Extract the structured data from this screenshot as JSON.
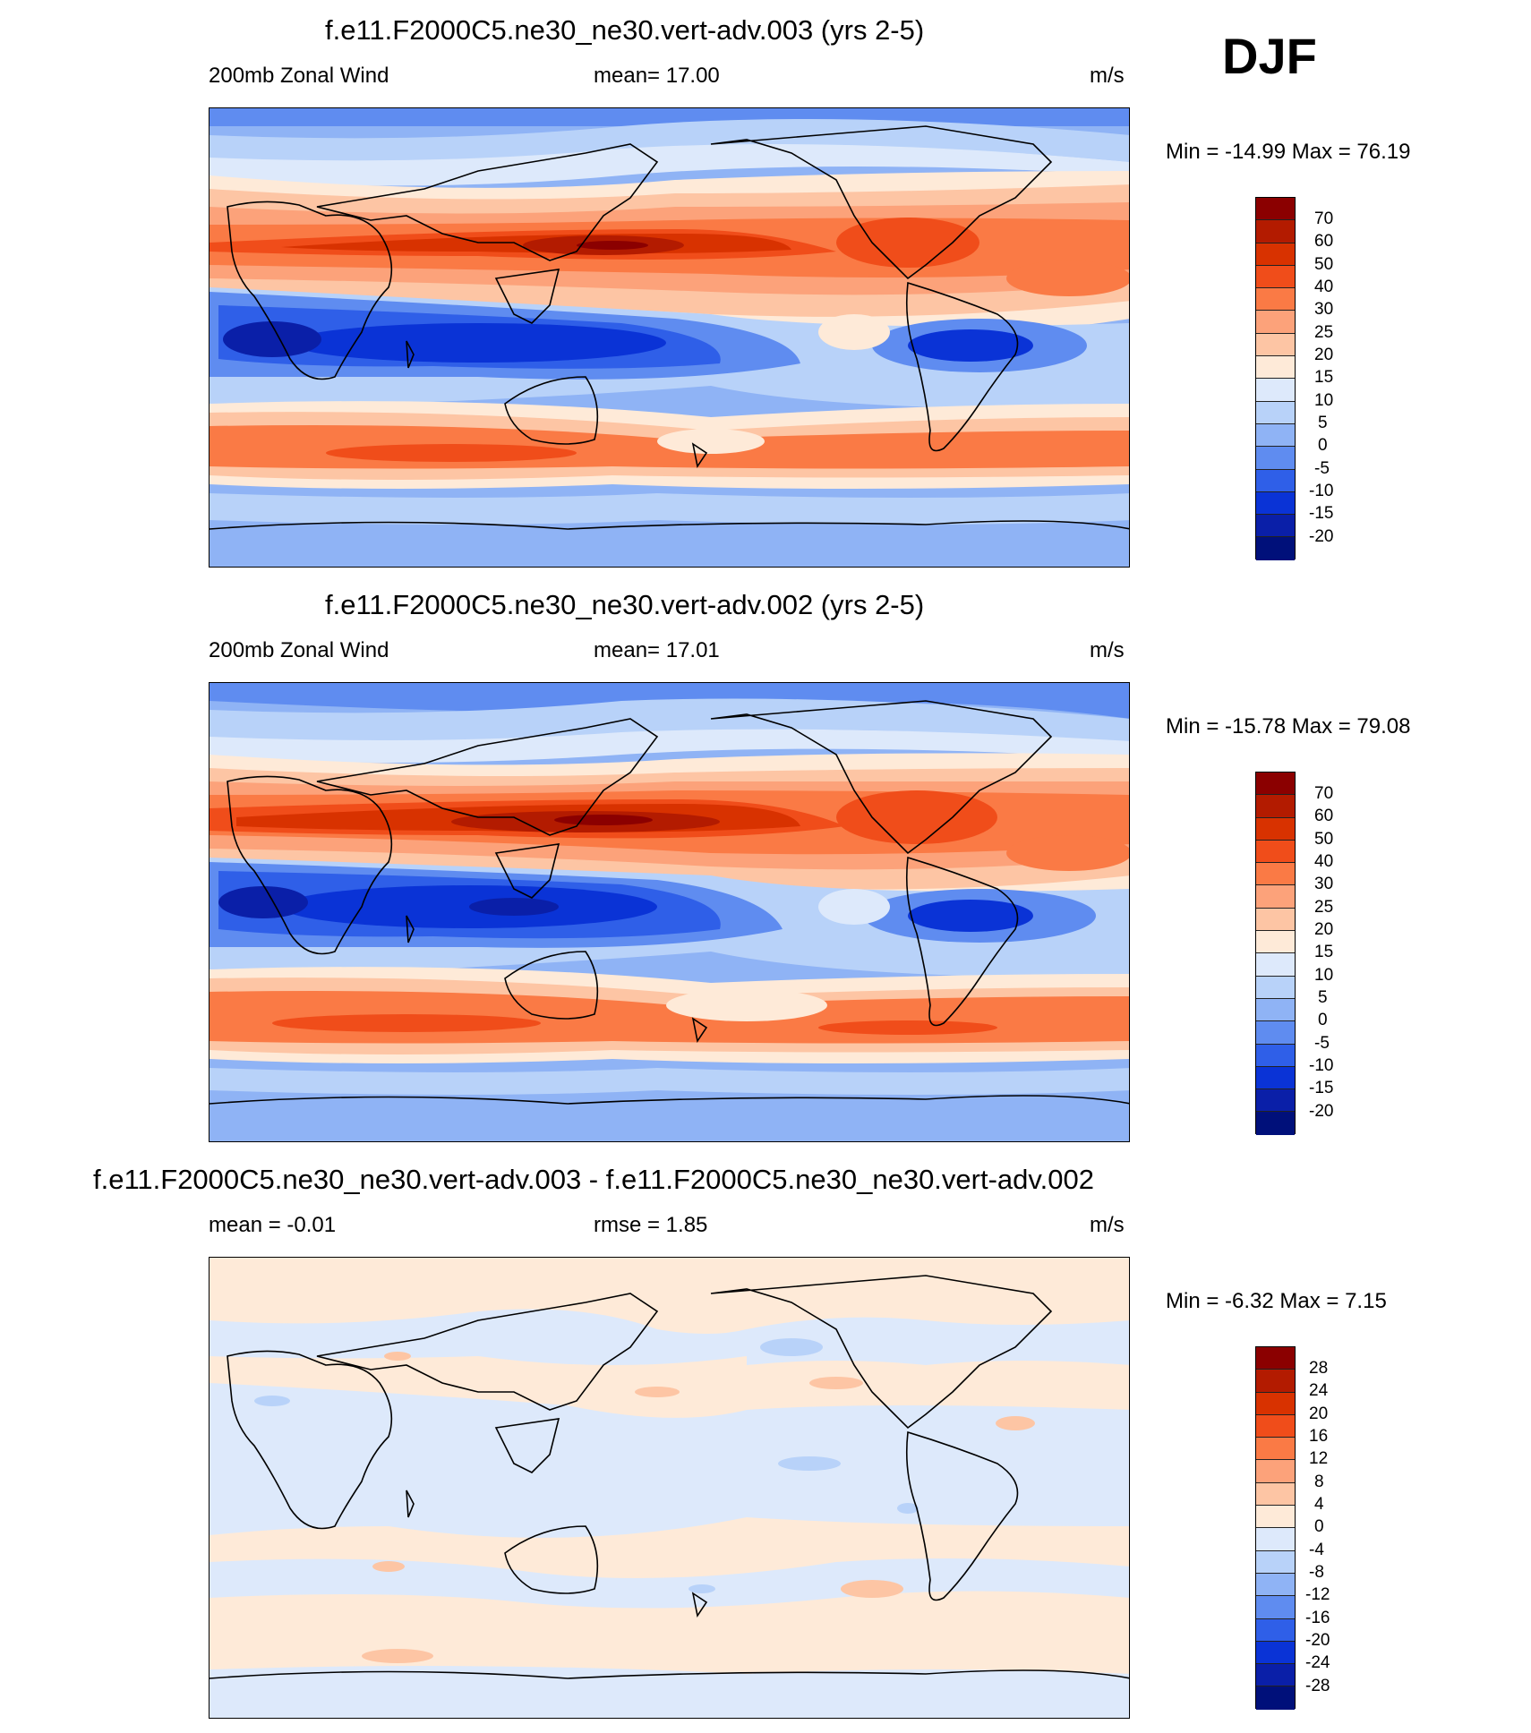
{
  "season": "DJF",
  "panels": [
    {
      "title": "f.e11.F2000C5.ne30_ne30.vert-adv.003 (yrs 2-5)",
      "left_label": "200mb Zonal Wind",
      "center_label": "mean=  17.00",
      "units": "m/s",
      "minmax": "Min = -14.99 Max =  76.19",
      "colorbar_labels": [
        "70",
        "60",
        "50",
        "40",
        "30",
        "25",
        "20",
        "15",
        "10",
        "5",
        "0",
        "-5",
        "-10",
        "-15",
        "-20"
      ]
    },
    {
      "title": "f.e11.F2000C5.ne30_ne30.vert-adv.002 (yrs 2-5)",
      "left_label": "200mb Zonal Wind",
      "center_label": "mean=  17.01",
      "units": "m/s",
      "minmax": "Min = -15.78 Max =  79.08",
      "colorbar_labels": [
        "70",
        "60",
        "50",
        "40",
        "30",
        "25",
        "20",
        "15",
        "10",
        "5",
        "0",
        "-5",
        "-10",
        "-15",
        "-20"
      ]
    },
    {
      "title": "f.e11.F2000C5.ne30_ne30.vert-adv.003 - f.e11.F2000C5.ne30_ne30.vert-adv.002",
      "left_label": "mean =  -0.01",
      "center_label": "rmse =   1.85",
      "units": "m/s",
      "minmax": "Min =  -6.32 Max =   7.15",
      "colorbar_labels": [
        "28",
        "24",
        "20",
        "16",
        "12",
        "8",
        "4",
        "0",
        "-4",
        "-8",
        "-12",
        "-16",
        "-20",
        "-24",
        "-28"
      ]
    }
  ],
  "colors": {
    "palette": [
      "#8b0000",
      "#b31b00",
      "#d83200",
      "#f04d1a",
      "#fa7a45",
      "#fca27a",
      "#fdc5a4",
      "#feead8",
      "#dde9fb",
      "#b8d2f9",
      "#8fb3f5",
      "#5f8cf0",
      "#2f5fe8",
      "#0a33d6",
      "#0a1fa8",
      "#00107a"
    ],
    "coastline": "#000000"
  }
}
